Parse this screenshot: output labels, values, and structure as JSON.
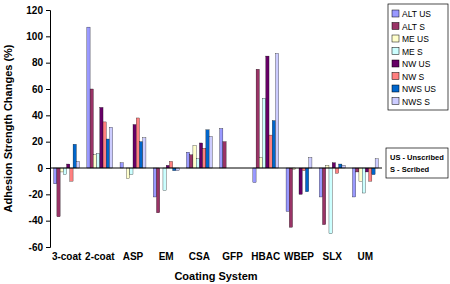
{
  "chart_data": {
    "type": "bar",
    "x_label": "Coating System",
    "y_label": "Adhesion Strength Changes (%)",
    "categories": [
      "3-coat",
      "2-coat",
      "ASP",
      "EM",
      "CSA",
      "GFP",
      "HBAC",
      "WBEP",
      "SLX",
      "UM"
    ],
    "series": [
      {
        "name": "ALT US",
        "color": "#9999ff",
        "values": [
          -12,
          107,
          4,
          -22,
          12,
          30,
          -11,
          -33,
          -22,
          -22
        ]
      },
      {
        "name": "ALT S",
        "color": "#993366",
        "values": [
          -37,
          60,
          0,
          -34,
          10,
          20,
          75,
          -45,
          -43,
          -3
        ]
      },
      {
        "name": "ME US",
        "color": "#ffffcc",
        "values": [
          -3,
          10,
          -8,
          0,
          17,
          null,
          8,
          -1,
          2,
          -10
        ]
      },
      {
        "name": "ME S",
        "color": "#ccffff",
        "values": [
          -5,
          11,
          -5,
          -17,
          7,
          null,
          53,
          0,
          -50,
          -19
        ]
      },
      {
        "name": "NW US",
        "color": "#660066",
        "values": [
          3,
          46,
          33,
          2,
          19,
          null,
          85,
          -20,
          4,
          -3
        ]
      },
      {
        "name": "NW S",
        "color": "#ff8080",
        "values": [
          -10,
          35,
          38,
          5,
          15,
          null,
          25,
          -2,
          -4,
          -10
        ]
      },
      {
        "name": "NWS US",
        "color": "#0066cc",
        "values": [
          18,
          22,
          20,
          -2,
          29,
          null,
          36,
          -18,
          3,
          -5
        ]
      },
      {
        "name": "NWS S",
        "color": "#ccccff",
        "values": [
          5,
          31,
          23,
          -2,
          24,
          null,
          87,
          8,
          2,
          7
        ]
      }
    ],
    "annotations": [
      "US - Unscribed",
      "S - Scribed"
    ],
    "ylim": [
      -60,
      120
    ],
    "yticks": [
      -60,
      -40,
      -20,
      0,
      20,
      40,
      60,
      80,
      100,
      120
    ],
    "grid": false,
    "legend": "right"
  }
}
